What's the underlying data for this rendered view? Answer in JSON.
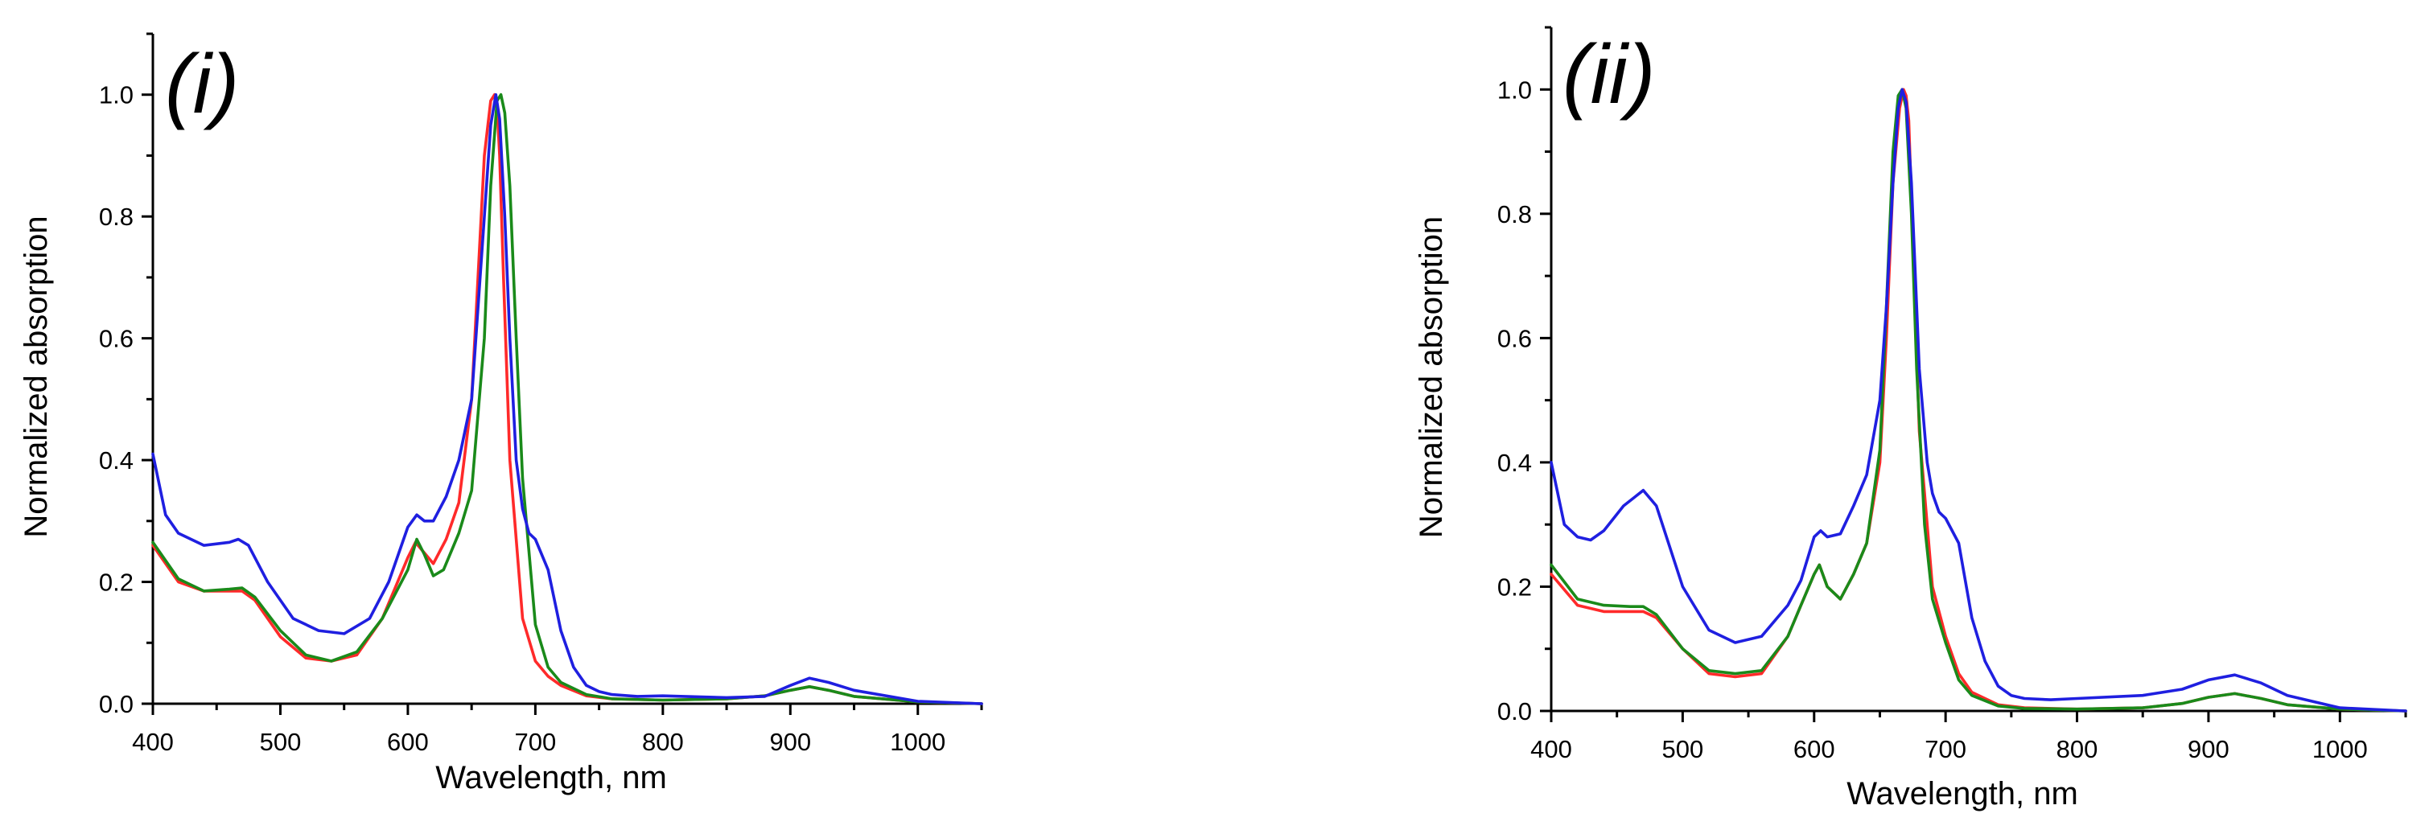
{
  "chart_data": [
    {
      "type": "line",
      "panel_label": "(i)",
      "xlabel": "Wavelength, nm",
      "ylabel": "Normalized absorption",
      "xlim": [
        400,
        1050
      ],
      "ylim": [
        0,
        1.1
      ],
      "xticks": [
        400,
        500,
        600,
        700,
        800,
        900,
        1000
      ],
      "xtick_labels": [
        "400",
        "500",
        "600",
        "700",
        "800",
        "900",
        "1000"
      ],
      "yticks": [
        0.0,
        0.2,
        0.4,
        0.6,
        0.8,
        1.0
      ],
      "ytick_labels": [
        "0.0",
        "0.2",
        "0.4",
        "0.6",
        "0.8",
        "1.0"
      ],
      "grid": false,
      "series": [
        {
          "color": "#ff2a2a",
          "x": [
            400,
            420,
            440,
            460,
            470,
            480,
            500,
            520,
            540,
            560,
            580,
            590,
            600,
            606,
            612,
            620,
            630,
            640,
            650,
            655,
            660,
            665,
            668,
            670,
            672,
            675,
            680,
            690,
            700,
            710,
            720,
            740,
            760,
            800,
            850,
            880,
            900,
            915,
            930,
            950,
            1000,
            1050
          ],
          "y": [
            0.26,
            0.2,
            0.185,
            0.185,
            0.185,
            0.17,
            0.11,
            0.075,
            0.07,
            0.08,
            0.14,
            0.19,
            0.24,
            0.265,
            0.25,
            0.23,
            0.27,
            0.33,
            0.5,
            0.7,
            0.9,
            0.99,
            1.0,
            0.98,
            0.9,
            0.7,
            0.4,
            0.14,
            0.07,
            0.045,
            0.03,
            0.013,
            0.008,
            0.006,
            0.008,
            0.013,
            0.022,
            0.028,
            0.022,
            0.012,
            0.003,
            0.0
          ]
        },
        {
          "color": "#1a8a1a",
          "x": [
            400,
            420,
            440,
            460,
            470,
            480,
            500,
            520,
            540,
            560,
            580,
            590,
            600,
            607,
            613,
            620,
            628,
            640,
            650,
            660,
            665,
            670,
            673,
            676,
            680,
            685,
            690,
            700,
            710,
            720,
            740,
            760,
            800,
            850,
            880,
            900,
            915,
            930,
            950,
            1000,
            1050
          ],
          "y": [
            0.265,
            0.205,
            0.185,
            0.188,
            0.19,
            0.175,
            0.12,
            0.08,
            0.07,
            0.085,
            0.14,
            0.18,
            0.22,
            0.27,
            0.245,
            0.21,
            0.22,
            0.28,
            0.35,
            0.6,
            0.85,
            0.99,
            1.0,
            0.97,
            0.85,
            0.6,
            0.37,
            0.13,
            0.06,
            0.035,
            0.015,
            0.008,
            0.006,
            0.008,
            0.013,
            0.022,
            0.028,
            0.022,
            0.012,
            0.003,
            0.0
          ]
        },
        {
          "color": "#1f1fe0",
          "x": [
            400,
            410,
            420,
            440,
            460,
            467,
            475,
            490,
            510,
            530,
            550,
            570,
            585,
            600,
            607,
            613,
            620,
            630,
            640,
            650,
            660,
            665,
            669,
            672,
            676,
            680,
            685,
            690,
            695,
            700,
            710,
            720,
            730,
            740,
            750,
            760,
            780,
            800,
            850,
            880,
            900,
            915,
            930,
            950,
            1000,
            1050
          ],
          "y": [
            0.41,
            0.31,
            0.28,
            0.26,
            0.265,
            0.27,
            0.26,
            0.2,
            0.14,
            0.12,
            0.115,
            0.14,
            0.2,
            0.29,
            0.31,
            0.3,
            0.3,
            0.34,
            0.4,
            0.5,
            0.8,
            0.95,
            1.0,
            0.96,
            0.8,
            0.6,
            0.4,
            0.32,
            0.28,
            0.27,
            0.22,
            0.12,
            0.06,
            0.03,
            0.02,
            0.015,
            0.012,
            0.013,
            0.01,
            0.012,
            0.03,
            0.042,
            0.035,
            0.022,
            0.004,
            0.0
          ]
        }
      ]
    },
    {
      "type": "line",
      "panel_label": "(ii)",
      "xlabel": "Wavelength, nm",
      "ylabel": "Normalized absorption",
      "xlim": [
        400,
        1050
      ],
      "ylim": [
        0,
        1.1
      ],
      "xticks": [
        400,
        500,
        600,
        700,
        800,
        900,
        1000
      ],
      "xtick_labels": [
        "400",
        "500",
        "600",
        "700",
        "800",
        "900",
        "1000"
      ],
      "yticks": [
        0.0,
        0.2,
        0.4,
        0.6,
        0.8,
        1.0
      ],
      "ytick_labels": [
        "0.0",
        "0.2",
        "0.4",
        "0.6",
        "0.8",
        "1.0"
      ],
      "grid": false,
      "series": [
        {
          "color": "#ff2a2a",
          "x": [
            400,
            420,
            440,
            460,
            470,
            480,
            500,
            520,
            540,
            560,
            580,
            590,
            600,
            604,
            610,
            620,
            630,
            640,
            650,
            655,
            660,
            665,
            668,
            670,
            672,
            676,
            680,
            690,
            700,
            710,
            720,
            740,
            760,
            800,
            850,
            880,
            900,
            920,
            940,
            960,
            1000,
            1050
          ],
          "y": [
            0.22,
            0.17,
            0.16,
            0.16,
            0.16,
            0.15,
            0.1,
            0.06,
            0.055,
            0.06,
            0.12,
            0.17,
            0.22,
            0.235,
            0.2,
            0.18,
            0.22,
            0.27,
            0.4,
            0.6,
            0.85,
            0.97,
            1.0,
            0.99,
            0.95,
            0.7,
            0.45,
            0.2,
            0.12,
            0.06,
            0.03,
            0.01,
            0.005,
            0.003,
            0.005,
            0.012,
            0.022,
            0.028,
            0.02,
            0.01,
            0.003,
            0.0
          ]
        },
        {
          "color": "#1a8a1a",
          "x": [
            400,
            420,
            440,
            460,
            470,
            480,
            500,
            520,
            540,
            560,
            580,
            590,
            600,
            604,
            610,
            620,
            630,
            640,
            650,
            655,
            660,
            664,
            667,
            670,
            674,
            678,
            684,
            690,
            700,
            710,
            720,
            740,
            760,
            800,
            850,
            880,
            900,
            920,
            940,
            960,
            1000,
            1050
          ],
          "y": [
            0.235,
            0.18,
            0.17,
            0.168,
            0.168,
            0.155,
            0.1,
            0.065,
            0.06,
            0.065,
            0.12,
            0.17,
            0.22,
            0.235,
            0.2,
            0.18,
            0.22,
            0.27,
            0.42,
            0.65,
            0.9,
            0.99,
            1.0,
            0.97,
            0.8,
            0.55,
            0.3,
            0.18,
            0.11,
            0.05,
            0.025,
            0.008,
            0.004,
            0.003,
            0.005,
            0.012,
            0.022,
            0.028,
            0.02,
            0.01,
            0.003,
            0.0
          ]
        },
        {
          "color": "#1f1fe0",
          "x": [
            400,
            410,
            420,
            430,
            440,
            455,
            470,
            480,
            500,
            520,
            540,
            560,
            580,
            590,
            600,
            605,
            610,
            620,
            630,
            640,
            650,
            655,
            660,
            664,
            667,
            670,
            674,
            680,
            686,
            690,
            695,
            700,
            710,
            720,
            730,
            740,
            750,
            760,
            780,
            800,
            850,
            880,
            900,
            920,
            940,
            960,
            1000,
            1050
          ],
          "y": [
            0.4,
            0.3,
            0.28,
            0.275,
            0.29,
            0.33,
            0.355,
            0.33,
            0.2,
            0.13,
            0.11,
            0.12,
            0.17,
            0.21,
            0.28,
            0.29,
            0.28,
            0.285,
            0.33,
            0.38,
            0.5,
            0.65,
            0.85,
            0.97,
            1.0,
            0.98,
            0.85,
            0.55,
            0.4,
            0.35,
            0.32,
            0.31,
            0.27,
            0.15,
            0.08,
            0.04,
            0.025,
            0.02,
            0.018,
            0.02,
            0.025,
            0.035,
            0.05,
            0.058,
            0.045,
            0.025,
            0.005,
            0.0
          ]
        }
      ]
    }
  ]
}
